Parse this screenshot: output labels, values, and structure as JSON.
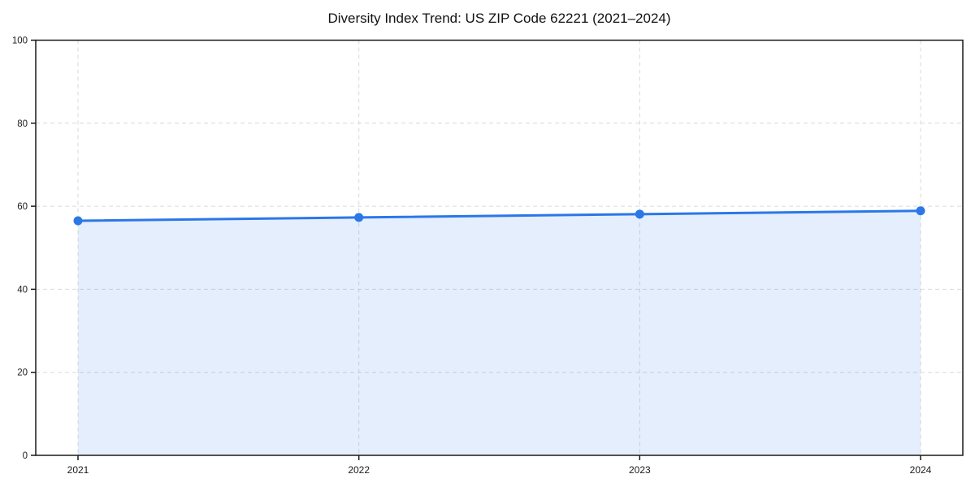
{
  "chart_data": {
    "type": "area",
    "title": "Diversity Index Trend: US ZIP Code 62221 (2021–2024)",
    "categories": [
      "2021",
      "2022",
      "2023",
      "2024"
    ],
    "series": [
      {
        "name": "Diversity Index",
        "values": [
          56.5,
          57.3,
          58.1,
          58.9
        ]
      }
    ],
    "xlabel": "",
    "ylabel": "",
    "ylim": [
      0,
      100
    ],
    "yticks": [
      0,
      20,
      40,
      60,
      80,
      100
    ],
    "grid": true,
    "grid_style": "dashed",
    "legend_position": "none",
    "marker": "circle",
    "colors": {
      "line": "#2b77e8",
      "fill": "#e8f0fc",
      "grid": "#d9d9d9",
      "spine": "#1a1a1a",
      "text": "#1a1a1a",
      "background": "#ffffff"
    }
  }
}
